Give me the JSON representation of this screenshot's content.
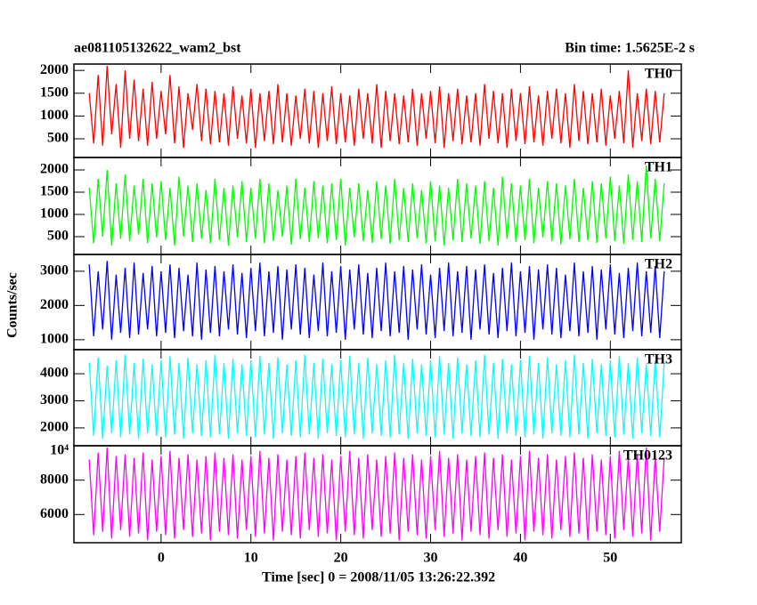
{
  "chart_data": {
    "type": "line",
    "title": "ae081105132622_wam2_bst",
    "subtitle": "Bin time: 1.5625E-2 s",
    "xlabel": "Time [sec] 0 = 2008/11/05 13:26:22.392",
    "ylabel": "Counts/sec",
    "xlim": [
      -9.7,
      57.9
    ],
    "xticks": [
      0,
      10,
      20,
      30,
      40,
      50
    ],
    "x": [
      -8,
      -7.5,
      -7,
      -6.5,
      -6,
      -5.5,
      -5,
      -4.5,
      -4,
      -3.5,
      -3,
      -2.5,
      -2,
      -1.5,
      -1,
      -0.5,
      0,
      0.5,
      1,
      1.5,
      2,
      2.5,
      3,
      3.5,
      4,
      4.5,
      5,
      5.5,
      6,
      6.5,
      7,
      7.5,
      8,
      8.5,
      9,
      9.5,
      10,
      10.5,
      11,
      11.5,
      12,
      12.5,
      13,
      13.5,
      14,
      14.5,
      15,
      15.5,
      16,
      16.5,
      17,
      17.5,
      18,
      18.5,
      19,
      19.5,
      20,
      20.5,
      21,
      21.5,
      22,
      22.5,
      23,
      23.5,
      24,
      24.5,
      25,
      25.5,
      26,
      26.5,
      27,
      27.5,
      28,
      28.5,
      29,
      29.5,
      30,
      30.5,
      31,
      31.5,
      32,
      32.5,
      33,
      33.5,
      34,
      34.5,
      35,
      35.5,
      36,
      36.5,
      37,
      37.5,
      38,
      38.5,
      39,
      39.5,
      40,
      40.5,
      41,
      41.5,
      42,
      42.5,
      43,
      43.5,
      44,
      44.5,
      45,
      45.5,
      46,
      46.5,
      47,
      47.5,
      48,
      48.5,
      49,
      49.5,
      50,
      50.5,
      51,
      51.5,
      52,
      52.5,
      53,
      53.5,
      54,
      54.5,
      55,
      55.5,
      56
    ],
    "series": [
      {
        "name": "TH0",
        "color": "#ff0000",
        "ylim": [
          90,
          2140
        ],
        "yticks": [
          500,
          1000,
          1500,
          2000
        ],
        "values": [
          1500,
          400,
          1900,
          350,
          2100,
          600,
          1700,
          300,
          2000,
          500,
          1800,
          450,
          1600,
          350,
          1750,
          500,
          1550,
          600,
          1900,
          400,
          1650,
          300,
          1500,
          700,
          1700,
          450,
          1600,
          380,
          1550,
          420,
          1500,
          350,
          1650,
          500,
          1450,
          400,
          1600,
          300,
          1500,
          450,
          1550,
          380,
          1700,
          420,
          1500,
          350,
          1450,
          500,
          1600,
          400,
          1550,
          300,
          1500,
          450,
          1650,
          380,
          1500,
          420,
          1450,
          350,
          1600,
          500,
          1500,
          400,
          1700,
          300,
          1550,
          450,
          1500,
          380,
          1450,
          420,
          1600,
          350,
          1500,
          500,
          1550,
          400,
          1650,
          300,
          1500,
          450,
          1600,
          380,
          1450,
          420,
          1500,
          350,
          1700,
          500,
          1550,
          400,
          1500,
          300,
          1600,
          450,
          1500,
          380,
          1650,
          420,
          1450,
          350,
          1550,
          500,
          1600,
          400,
          1500,
          300,
          1700,
          450,
          1550,
          380,
          1500,
          420,
          1600,
          350,
          1450,
          500,
          1550,
          400,
          2000,
          300,
          1500,
          450,
          1600,
          380,
          1550,
          420,
          1500
        ]
      },
      {
        "name": "TH1",
        "color": "#00ff00",
        "ylim": [
          100,
          2280
        ],
        "yticks": [
          500,
          1000,
          1500,
          2000
        ],
        "values": [
          1600,
          350,
          1800,
          500,
          2000,
          300,
          1700,
          450,
          1900,
          400,
          1650,
          550,
          1800,
          350,
          1700,
          480,
          1750,
          420,
          1600,
          300,
          1850,
          500,
          1650,
          380,
          1700,
          450,
          1550,
          350,
          1800,
          420,
          1600,
          300,
          1650,
          480,
          1750,
          380,
          1600,
          450,
          1800,
          350,
          1700,
          400,
          1550,
          500,
          1650,
          320,
          1800,
          440,
          1600,
          380,
          1750,
          460,
          1650,
          350,
          1700,
          420,
          1800,
          300,
          1600,
          480,
          1700,
          400,
          1550,
          360,
          1750,
          440,
          1650,
          340,
          1800,
          420,
          1600,
          380,
          1700,
          460,
          1550,
          350,
          1750,
          400,
          1650,
          300,
          1600,
          420,
          1800,
          380,
          1700,
          460,
          1650,
          340,
          1750,
          400,
          1600,
          300,
          1850,
          450,
          1700,
          380,
          1650,
          420,
          1800,
          350,
          1600,
          480,
          1750,
          400,
          1700,
          320,
          1650,
          440,
          1800,
          380,
          1600,
          420,
          1750,
          360,
          1700,
          460,
          1850,
          400,
          1650,
          340,
          1900,
          420,
          1750,
          380,
          2100,
          450,
          1800,
          400,
          1700
        ]
      },
      {
        "name": "TH2",
        "color": "#0000ff",
        "ylim": [
          710,
          3490
        ],
        "yticks": [
          1000,
          2000,
          3000
        ],
        "values": [
          3200,
          1100,
          3000,
          1300,
          3300,
          1000,
          2900,
          1200,
          3100,
          1050,
          3250,
          1150,
          2950,
          1300,
          3150,
          1100,
          3000,
          1200,
          3200,
          1050,
          3100,
          1250,
          2900,
          1100,
          3250,
          1000,
          3050,
          1200,
          3150,
          1100,
          3000,
          1300,
          3200,
          1150,
          2950,
          1050,
          3100,
          1250,
          3250,
          1100,
          3000,
          1200,
          3150,
          1000,
          3050,
          1300,
          3200,
          1150,
          3100,
          1050,
          2900,
          1250,
          3250,
          1100,
          3000,
          1200,
          3150,
          1000,
          3050,
          1300,
          3200,
          1150,
          2950,
          1050,
          3100,
          1250,
          3250,
          1100,
          3000,
          1200,
          3150,
          1000,
          3050,
          1300,
          3200,
          1150,
          2900,
          1050,
          3100,
          1250,
          3250,
          1100,
          3000,
          1200,
          3150,
          1000,
          3050,
          1300,
          3200,
          1150,
          2950,
          1050,
          3100,
          1250,
          3250,
          1100,
          3000,
          1200,
          3150,
          1000,
          3050,
          1300,
          3200,
          1150,
          3100,
          1050,
          2900,
          1250,
          3250,
          1100,
          3000,
          1200,
          3150,
          1000,
          3050,
          1300,
          3200,
          1150,
          2950,
          1050,
          3100,
          1250,
          3250,
          1100,
          3000,
          1200,
          3150,
          1050,
          3000
        ]
      },
      {
        "name": "TH3",
        "color": "#00ffff",
        "ylim": [
          1340,
          4890
        ],
        "yticks": [
          2000,
          3000,
          4000
        ],
        "values": [
          4400,
          1700,
          4600,
          1600,
          4300,
          1800,
          4500,
          1650,
          4700,
          1750,
          4400,
          1600,
          4550,
          1800,
          4350,
          1700,
          4500,
          1650,
          4650,
          1750,
          4400,
          1600,
          4600,
          1800,
          4350,
          1700,
          4500,
          1650,
          4700,
          1750,
          4400,
          1600,
          4550,
          1800,
          4350,
          1700,
          4500,
          1650,
          4650,
          1750,
          4400,
          1600,
          4600,
          1800,
          4350,
          1700,
          4500,
          1650,
          4700,
          1750,
          4400,
          1600,
          4550,
          1800,
          4350,
          1700,
          4500,
          1650,
          4650,
          1750,
          4400,
          1600,
          4600,
          1800,
          4350,
          1700,
          4500,
          1650,
          4700,
          1750,
          4400,
          1600,
          4550,
          1800,
          4350,
          1700,
          4500,
          1650,
          4650,
          1750,
          4400,
          1600,
          4600,
          1800,
          4350,
          1700,
          4500,
          1650,
          4700,
          1750,
          4400,
          1600,
          4550,
          1800,
          4350,
          1700,
          4500,
          1650,
          4650,
          1750,
          4400,
          1600,
          4600,
          1800,
          4350,
          1700,
          4500,
          1650,
          4700,
          1750,
          4400,
          1600,
          4550,
          1800,
          4350,
          1700,
          4500,
          1650,
          4650,
          1750,
          4400,
          1600,
          4600,
          1800,
          4350,
          1700,
          4500,
          1650,
          4400
        ]
      },
      {
        "name": "TH0123",
        "color": "#ff00ff",
        "ylim": [
          4360,
          10000
        ],
        "yticks": [
          6000,
          8000,
          {
            "value": 10000,
            "label": "10⁴"
          }
        ],
        "values": [
          9200,
          4800,
          9600,
          5000,
          9900,
          4600,
          9400,
          5100,
          9500,
          4700,
          9300,
          4900,
          9600,
          4500,
          9200,
          5000,
          9400,
          4800,
          9700,
          4600,
          9300,
          5100,
          9500,
          4700,
          9200,
          4900,
          9400,
          4500,
          9600,
          5000,
          9300,
          4800,
          9500,
          4600,
          9200,
          5100,
          9400,
          4700,
          9700,
          4900,
          9300,
          4500,
          9500,
          5000,
          9200,
          4800,
          9400,
          4600,
          9600,
          5100,
          9300,
          4700,
          9500,
          4900,
          9200,
          4500,
          9400,
          5000,
          9700,
          4800,
          9300,
          4600,
          9500,
          5100,
          9200,
          4700,
          9400,
          4900,
          9600,
          4500,
          9300,
          5000,
          9500,
          4800,
          9200,
          4600,
          9400,
          5100,
          9700,
          4700,
          9300,
          4900,
          9500,
          4500,
          9200,
          5000,
          9400,
          4800,
          9600,
          4600,
          9300,
          5100,
          9500,
          4700,
          9200,
          4900,
          9400,
          4500,
          9700,
          5000,
          9300,
          4800,
          9500,
          4600,
          9200,
          5100,
          9400,
          4700,
          9600,
          4900,
          9300,
          4500,
          9500,
          5000,
          9200,
          4800,
          9400,
          4600,
          9700,
          5100,
          9300,
          4700,
          9500,
          4900,
          9900,
          4500,
          9400,
          5000,
          9300
        ]
      }
    ]
  }
}
